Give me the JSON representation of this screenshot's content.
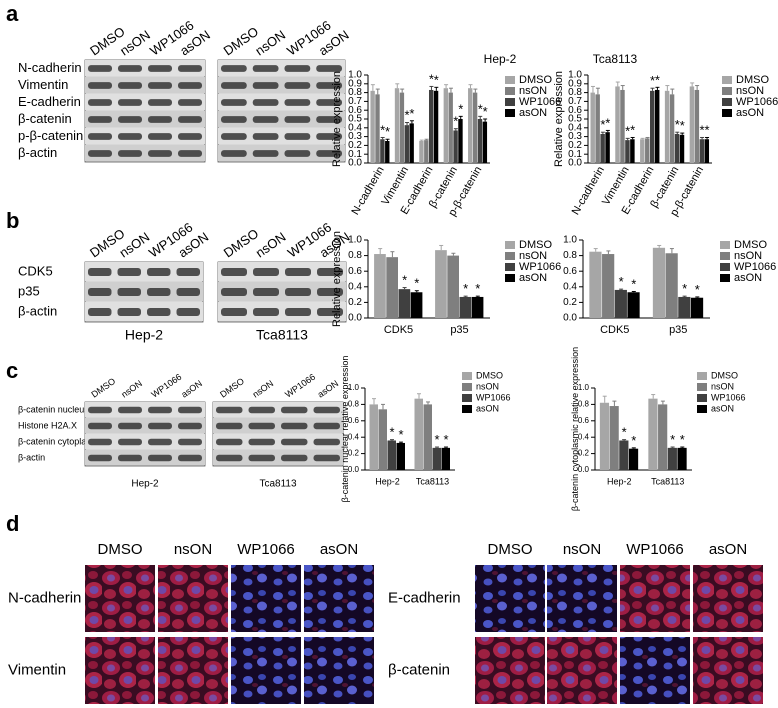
{
  "blot_panels": [
    {
      "label": "a",
      "rows": [
        "N-cadherin",
        "Vimentin",
        "E-cadherin",
        "β-catenin",
        "p-β-catenin",
        "β-actin"
      ],
      "blots": [
        {
          "lanes": [
            "DMSO",
            "nsON",
            "WP1066",
            "asON"
          ]
        },
        {
          "lanes": [
            "DMSO",
            "nsON",
            "WP1066",
            "asON"
          ]
        }
      ]
    },
    {
      "label": "b",
      "rows": [
        "CDK5",
        "p35",
        "β-actin"
      ],
      "blots": [
        {
          "lanes": [
            "DMSO",
            "nsON",
            "WP1066",
            "asON"
          ],
          "caption": "Hep-2"
        },
        {
          "lanes": [
            "DMSO",
            "nsON",
            "WP1066",
            "asON"
          ],
          "caption": "Tca8113"
        }
      ]
    },
    {
      "label": "c",
      "rows": [
        "β-catenin nucleus",
        "Histone H2A.X",
        "β-catenin cytoplasm",
        "β-actin"
      ],
      "blots": [
        {
          "lanes": [
            "DMSO",
            "nsON",
            "WP1066",
            "asON"
          ],
          "caption": "Hep-2"
        },
        {
          "lanes": [
            "DMSO",
            "nsON",
            "WP1066",
            "asON"
          ],
          "caption": "Tca8113"
        }
      ]
    }
  ],
  "chart_data": [
    {
      "type": "bar",
      "title": "Hep-2",
      "ylabel": "Relative expression",
      "categories": [
        "N-cadherin",
        "Vimentin",
        "E-cadherin",
        "β-catenin",
        "p-β-catenin"
      ],
      "series": [
        {
          "name": "DMSO",
          "color": "#a6a6a6",
          "values": [
            0.82,
            0.85,
            0.25,
            0.85,
            0.85
          ],
          "errors": [
            0.07,
            0.05,
            0.01,
            0.04,
            0.04
          ],
          "stars": [
            null,
            null,
            null,
            null,
            null
          ]
        },
        {
          "name": "nsON",
          "color": "#7f7f7f",
          "values": [
            0.78,
            0.8,
            0.26,
            0.8,
            0.8
          ],
          "errors": [
            0.06,
            0.04,
            0.01,
            0.05,
            0.04
          ],
          "stars": [
            null,
            null,
            null,
            null,
            null
          ]
        },
        {
          "name": "WP1066",
          "color": "#404040",
          "values": [
            0.27,
            0.43,
            0.83,
            0.37,
            0.5
          ],
          "errors": [
            0.02,
            0.03,
            0.04,
            0.02,
            0.03
          ],
          "stars": [
            "*",
            "*",
            "*",
            "*",
            "*"
          ]
        },
        {
          "name": "asON",
          "color": "#000000",
          "values": [
            0.25,
            0.45,
            0.82,
            0.5,
            0.47
          ],
          "errors": [
            0.02,
            0.03,
            0.04,
            0.03,
            0.03
          ],
          "stars": [
            "*",
            "*",
            "*",
            "*",
            "*"
          ]
        }
      ],
      "ylim": [
        0,
        1.0
      ],
      "yticks": [
        {
          "value": 0,
          "label": "0.0"
        },
        0.1,
        0.2,
        0.3,
        0.4,
        0.5,
        0.6,
        0.7,
        0.8,
        0.9,
        {
          "value": 1,
          "label": "1.0"
        }
      ]
    },
    {
      "type": "bar",
      "title": "Tca8113",
      "ylabel": "Relative expression",
      "categories": [
        "N-cadherin",
        "Vimentin",
        "E-cadherin",
        "β-catenin",
        "p-β-catenin"
      ],
      "series": [
        {
          "name": "DMSO",
          "color": "#a6a6a6",
          "values": [
            0.8,
            0.87,
            0.27,
            0.82,
            0.87
          ],
          "errors": [
            0.07,
            0.05,
            0.01,
            0.06,
            0.04
          ],
          "stars": [
            null,
            null,
            null,
            null,
            null
          ]
        },
        {
          "name": "nsON",
          "color": "#7f7f7f",
          "values": [
            0.78,
            0.83,
            0.28,
            0.78,
            0.83
          ],
          "errors": [
            0.07,
            0.05,
            0.01,
            0.06,
            0.05
          ],
          "stars": [
            null,
            null,
            null,
            null,
            null
          ]
        },
        {
          "name": "WP1066",
          "color": "#404040",
          "values": [
            0.33,
            0.26,
            0.82,
            0.33,
            0.27
          ],
          "errors": [
            0.02,
            0.02,
            0.03,
            0.02,
            0.02
          ],
          "stars": [
            "*",
            "*",
            "*",
            "*",
            "*"
          ]
        },
        {
          "name": "asON",
          "color": "#000000",
          "values": [
            0.35,
            0.27,
            0.83,
            0.32,
            0.27
          ],
          "errors": [
            0.02,
            0.02,
            0.03,
            0.02,
            0.02
          ],
          "stars": [
            "*",
            "*",
            "*",
            "*",
            "*"
          ]
        }
      ],
      "ylim": [
        0,
        1.0
      ],
      "yticks": [
        {
          "value": 0,
          "label": "0.0"
        },
        0.1,
        0.2,
        0.3,
        0.4,
        0.5,
        0.6,
        0.7,
        0.8,
        0.9,
        {
          "value": 1,
          "label": "1.0"
        }
      ]
    },
    {
      "type": "bar",
      "ylabel": "Relative expression",
      "categories": [
        "CDK5",
        "p35"
      ],
      "series": [
        {
          "name": "DMSO",
          "color": "#a6a6a6",
          "values": [
            0.82,
            0.87
          ],
          "errors": [
            0.07,
            0.06
          ],
          "stars": [
            null,
            null
          ]
        },
        {
          "name": "nsON",
          "color": "#7f7f7f",
          "values": [
            0.78,
            0.8
          ],
          "errors": [
            0.07,
            0.03
          ],
          "stars": [
            null,
            null
          ]
        },
        {
          "name": "WP1066",
          "color": "#404040",
          "values": [
            0.37,
            0.27
          ],
          "errors": [
            0.02,
            0.01
          ],
          "stars": [
            "*",
            "*"
          ]
        },
        {
          "name": "asON",
          "color": "#000000",
          "values": [
            0.33,
            0.27
          ],
          "errors": [
            0.02,
            0.01
          ],
          "stars": [
            "*",
            "*"
          ]
        }
      ],
      "ylim": [
        0,
        1.0
      ],
      "yticks": [
        {
          "value": 0,
          "label": "0.0"
        },
        0.2,
        0.4,
        0.6,
        0.8,
        {
          "value": 1,
          "label": "1.0"
        }
      ]
    },
    {
      "type": "bar",
      "categories": [
        "CDK5",
        "p35"
      ],
      "series": [
        {
          "name": "DMSO",
          "color": "#a6a6a6",
          "values": [
            0.85,
            0.9
          ],
          "errors": [
            0.04,
            0.03
          ],
          "stars": [
            null,
            null
          ]
        },
        {
          "name": "nsON",
          "color": "#7f7f7f",
          "values": [
            0.82,
            0.83
          ],
          "errors": [
            0.04,
            0.06
          ],
          "stars": [
            null,
            null
          ]
        },
        {
          "name": "WP1066",
          "color": "#404040",
          "values": [
            0.36,
            0.27
          ],
          "errors": [
            0.01,
            0.01
          ],
          "stars": [
            "*",
            "*"
          ]
        },
        {
          "name": "asON",
          "color": "#000000",
          "values": [
            0.33,
            0.26
          ],
          "errors": [
            0.01,
            0.01
          ],
          "stars": [
            "*",
            "*"
          ]
        }
      ],
      "ylim": [
        0,
        1.0
      ],
      "yticks": [
        {
          "value": 0,
          "label": "0.0"
        },
        0.2,
        0.4,
        0.6,
        0.8,
        {
          "value": 1,
          "label": "1.0"
        }
      ]
    },
    {
      "type": "bar",
      "ylabel": "β-catenin nuclear relative expression",
      "categories": [
        "Hep-2",
        "Tca8113"
      ],
      "series": [
        {
          "name": "DMSO",
          "color": "#a6a6a6",
          "values": [
            0.8,
            0.87
          ],
          "errors": [
            0.07,
            0.06
          ],
          "stars": [
            null,
            null
          ]
        },
        {
          "name": "nsON",
          "color": "#7f7f7f",
          "values": [
            0.74,
            0.8
          ],
          "errors": [
            0.06,
            0.03
          ],
          "stars": [
            null,
            null
          ]
        },
        {
          "name": "WP1066",
          "color": "#404040",
          "values": [
            0.36,
            0.27
          ],
          "errors": [
            0.01,
            0.01
          ],
          "stars": [
            "*",
            "*"
          ]
        },
        {
          "name": "asON",
          "color": "#000000",
          "values": [
            0.33,
            0.27
          ],
          "errors": [
            0.01,
            0.01
          ],
          "stars": [
            "*",
            "*"
          ]
        }
      ],
      "ylim": [
        0,
        1.0
      ],
      "yticks": [
        {
          "value": 0,
          "label": "0.0"
        },
        0.2,
        0.4,
        0.6,
        0.8,
        {
          "value": 1,
          "label": "1.0"
        }
      ]
    },
    {
      "type": "bar",
      "ylabel": "β-catenin cytoplasmic relative expression",
      "categories": [
        "Hep-2",
        "Tca8113"
      ],
      "series": [
        {
          "name": "DMSO",
          "color": "#a6a6a6",
          "values": [
            0.82,
            0.87
          ],
          "errors": [
            0.08,
            0.05
          ],
          "stars": [
            null,
            null
          ]
        },
        {
          "name": "nsON",
          "color": "#7f7f7f",
          "values": [
            0.78,
            0.8
          ],
          "errors": [
            0.06,
            0.04
          ],
          "stars": [
            null,
            null
          ]
        },
        {
          "name": "WP1066",
          "color": "#404040",
          "values": [
            0.36,
            0.27
          ],
          "errors": [
            0.01,
            0.01
          ],
          "stars": [
            "*",
            "*"
          ]
        },
        {
          "name": "asON",
          "color": "#000000",
          "values": [
            0.26,
            0.27
          ],
          "errors": [
            0.01,
            0.01
          ],
          "stars": [
            "*",
            "*"
          ]
        }
      ],
      "ylim": [
        0,
        1.0
      ],
      "yticks": [
        {
          "value": 0,
          "label": "0.0"
        },
        0.2,
        0.4,
        0.6,
        0.8,
        {
          "value": 1,
          "label": "1.0"
        }
      ]
    }
  ],
  "panel_d": {
    "label": "d",
    "groups": [
      {
        "columns": [
          "DMSO",
          "nsON",
          "WP1066",
          "asON"
        ],
        "rows": [
          "N-cadherin",
          "Vimentin"
        ]
      },
      {
        "columns": [
          "DMSO",
          "nsON",
          "WP1066",
          "asON"
        ],
        "rows": [
          "E-cadherin",
          "β-catenin"
        ]
      }
    ]
  }
}
